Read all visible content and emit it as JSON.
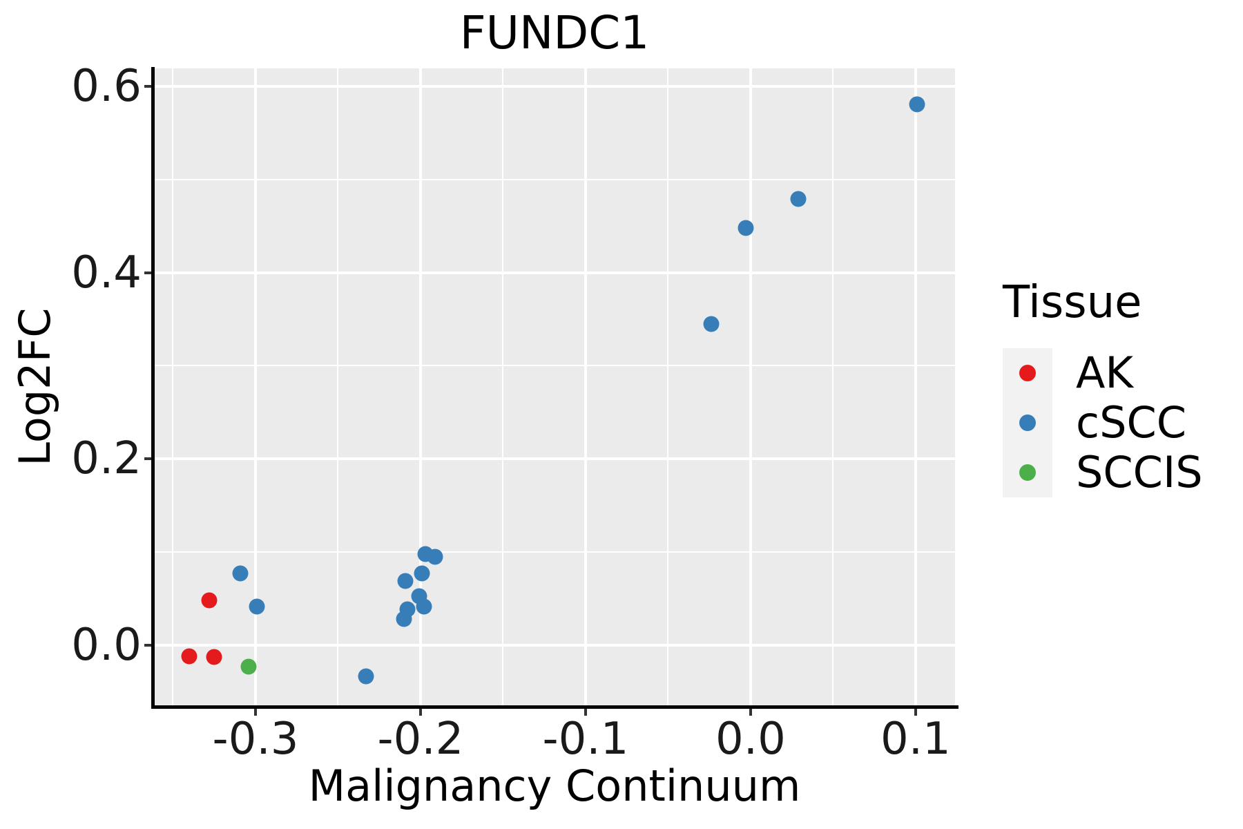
{
  "title": "FUNDC1",
  "colors": {
    "panel_background": "#EBEBEB",
    "gridline": "#FFFFFF",
    "axis_line": "#000000",
    "tick_text": "#1a1a1a",
    "legend_key_background": "#F2F2F2",
    "ak_red": "#E41A1C",
    "cscc_blue": "#377EB8",
    "sccis_green": "#4DAF4A"
  },
  "legend": {
    "title": "Tissue",
    "entries": [
      {
        "label": "AK",
        "color": "#E41A1C"
      },
      {
        "label": "cSCC",
        "color": "#377EB8"
      },
      {
        "label": "SCCIS",
        "color": "#4DAF4A"
      }
    ]
  },
  "chart_data": {
    "type": "scatter",
    "title": "FUNDC1",
    "xlabel": "Malignancy Continuum",
    "ylabel": "Log2FC",
    "xlim": [
      -0.3615,
      0.1239
    ],
    "ylim": [
      -0.0664,
      0.6195
    ],
    "grid": true,
    "legend_position": "right",
    "legend_title": "Tissue",
    "x_major_ticks": [
      -0.3,
      -0.2,
      -0.1,
      0.0,
      0.1
    ],
    "x_tick_labels": [
      "-0.3",
      "-0.2",
      "-0.1",
      "0.0",
      "0.1"
    ],
    "x_minor_ticks": [
      -0.35,
      -0.25,
      -0.15,
      -0.05,
      0.05
    ],
    "y_major_ticks": [
      0.0,
      0.2,
      0.4,
      0.6
    ],
    "y_tick_labels": [
      "0.0",
      "0.2",
      "0.4",
      "0.6"
    ],
    "y_minor_ticks": [
      0.1,
      0.3,
      0.5
    ],
    "series": [
      {
        "name": "AK",
        "color": "#E41A1C",
        "points": [
          [
            -0.328,
            0.048
          ],
          [
            -0.34,
            -0.012
          ],
          [
            -0.325,
            -0.013
          ]
        ]
      },
      {
        "name": "cSCC",
        "color": "#377EB8",
        "points": [
          [
            -0.309,
            0.077
          ],
          [
            -0.299,
            0.041
          ],
          [
            -0.233,
            -0.034
          ],
          [
            -0.21,
            0.028
          ],
          [
            -0.208,
            0.038
          ],
          [
            -0.209,
            0.069
          ],
          [
            -0.201,
            0.052
          ],
          [
            -0.198,
            0.041
          ],
          [
            -0.199,
            0.077
          ],
          [
            -0.197,
            0.098
          ],
          [
            -0.191,
            0.095
          ],
          [
            -0.024,
            0.345
          ],
          [
            -0.003,
            0.448
          ],
          [
            0.029,
            0.479
          ],
          [
            0.101,
            0.581
          ]
        ]
      },
      {
        "name": "SCCIS",
        "color": "#4DAF4A",
        "points": [
          [
            -0.304,
            -0.023
          ]
        ]
      }
    ]
  }
}
